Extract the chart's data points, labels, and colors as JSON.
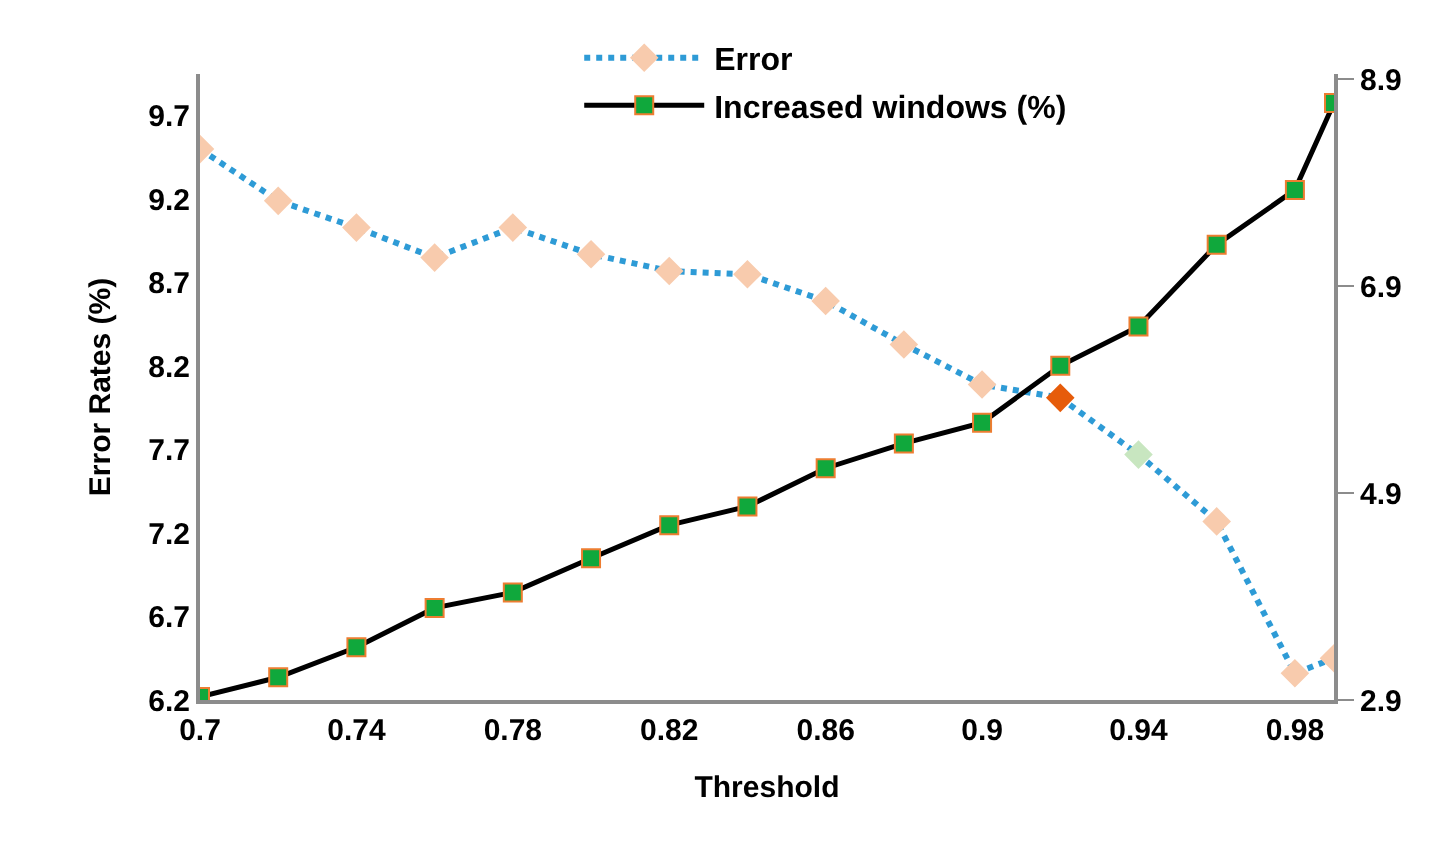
{
  "chart_data": {
    "type": "line",
    "xlabel": "Threshold",
    "ylabel": "Error Rates (%)",
    "x": [
      0.7,
      0.72,
      0.74,
      0.76,
      0.78,
      0.8,
      0.82,
      0.84,
      0.86,
      0.88,
      0.9,
      0.92,
      0.94,
      0.96,
      0.98,
      0.99
    ],
    "xlim": [
      0.7,
      0.99
    ],
    "xticks": [
      0.7,
      0.74,
      0.78,
      0.82,
      0.86,
      0.9,
      0.94,
      0.98
    ],
    "ylim": [
      6.2,
      9.95
    ],
    "yticks": [
      6.2,
      6.7,
      7.2,
      7.7,
      8.2,
      8.7,
      9.2,
      9.7
    ],
    "y2lim": [
      2.9,
      8.95
    ],
    "y2ticks": [
      2.9,
      4.9,
      6.9,
      8.9
    ],
    "legend": "top",
    "series": [
      {
        "name": "Error",
        "color": "#2e9bd6",
        "marker": "diamond",
        "line_style": "dotted",
        "colors": [
          "#f8cbad",
          "#f8cbad",
          "#f8cbad",
          "#f8cbad",
          "#f8cbad",
          "#f8cbad",
          "#f8cbad",
          "#f8cbad",
          "#f8cbad",
          "#f8cbad",
          "#f8cbad",
          "#e65c0a",
          "#c8e6c0",
          "#f8cbad",
          "#f8cbad",
          "#f8cbad"
        ],
        "values": [
          9.5,
          9.19,
          9.03,
          8.85,
          9.03,
          8.87,
          8.77,
          8.75,
          8.59,
          8.33,
          8.09,
          8.01,
          7.67,
          7.27,
          6.36,
          6.45
        ]
      },
      {
        "name": "Increased windows (%)",
        "color": "#000000",
        "marker": "square",
        "line_style": "solid",
        "axis": "y2",
        "values": [
          2.93,
          3.12,
          3.41,
          3.79,
          3.94,
          4.27,
          4.59,
          4.77,
          5.14,
          5.38,
          5.58,
          6.13,
          6.51,
          7.3,
          7.83,
          8.67
        ]
      }
    ]
  }
}
